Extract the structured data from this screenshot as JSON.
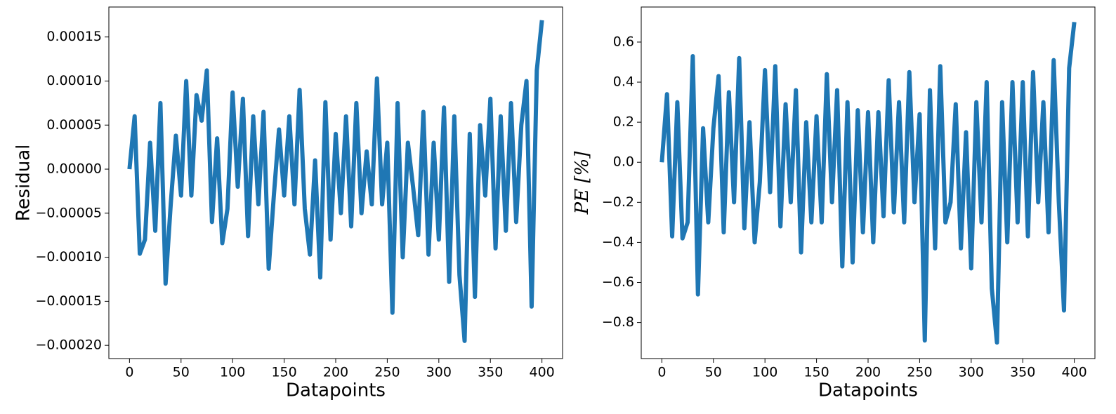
{
  "chart_data": [
    {
      "type": "line",
      "xlabel": "Datapoints",
      "ylabel": "Residual",
      "color": "#1f77b4",
      "x": [
        0,
        5,
        10,
        15,
        20,
        25,
        30,
        35,
        40,
        45,
        50,
        55,
        60,
        65,
        70,
        75,
        80,
        85,
        90,
        95,
        100,
        105,
        110,
        115,
        120,
        125,
        130,
        135,
        140,
        145,
        150,
        155,
        160,
        165,
        170,
        175,
        180,
        185,
        190,
        195,
        200,
        205,
        210,
        215,
        220,
        225,
        230,
        235,
        240,
        245,
        250,
        255,
        260,
        265,
        270,
        275,
        280,
        285,
        290,
        295,
        300,
        305,
        310,
        315,
        320,
        325,
        330,
        335,
        340,
        345,
        350,
        355,
        360,
        365,
        370,
        375,
        380,
        385,
        390,
        395,
        400
      ],
      "values": [
        0,
        6e-05,
        -9.6e-05,
        -8e-05,
        3e-05,
        -7e-05,
        7.5e-05,
        -0.00013,
        -4e-05,
        3.8e-05,
        -3e-05,
        0.0001,
        -3e-05,
        8.4e-05,
        5.5e-05,
        0.000112,
        -6e-05,
        3.5e-05,
        -8.4e-05,
        -4.5e-05,
        8.7e-05,
        -2e-05,
        8e-05,
        -7.6e-05,
        6e-05,
        -4e-05,
        6.5e-05,
        -0.000113,
        -3e-05,
        4.5e-05,
        -3e-05,
        6e-05,
        -4e-05,
        9e-05,
        -4.5e-05,
        -9.7e-05,
        1e-05,
        -0.000123,
        7.6e-05,
        -8e-05,
        4e-05,
        -5e-05,
        6e-05,
        -6.5e-05,
        7.5e-05,
        -5e-05,
        2e-05,
        -4e-05,
        0.000103,
        -4e-05,
        3e-05,
        -0.000163,
        7.5e-05,
        -0.0001,
        3e-05,
        -2e-05,
        -7.5e-05,
        6.5e-05,
        -9.7e-05,
        3e-05,
        -8e-05,
        7e-05,
        -0.000128,
        6e-05,
        -0.00012,
        -0.000195,
        4e-05,
        -0.000145,
        5e-05,
        -3e-05,
        8e-05,
        -9e-05,
        6e-05,
        -7e-05,
        7.5e-05,
        -6e-05,
        5e-05,
        0.0001,
        -0.000156,
        0.000112,
        0.000169
      ],
      "xlim": [
        -20,
        420
      ],
      "ylim": [
        -0.000215,
        0.000184
      ],
      "xticks": [
        0,
        50,
        100,
        150,
        200,
        250,
        300,
        350,
        400
      ],
      "yticks": [
        {
          "value": -0.0002,
          "label": "−0.00020"
        },
        {
          "value": -0.00015,
          "label": "−0.00015"
        },
        {
          "value": -0.0001,
          "label": "−0.00010"
        },
        {
          "value": -5e-05,
          "label": "−0.00005"
        },
        {
          "value": 0,
          "label": "0.00000"
        },
        {
          "value": 5e-05,
          "label": "0.00005"
        },
        {
          "value": 0.0001,
          "label": "0.00010"
        },
        {
          "value": 0.00015,
          "label": "0.00015"
        }
      ]
    },
    {
      "type": "line",
      "xlabel": "Datapoints",
      "ylabel": "PE [%]",
      "color": "#1f77b4",
      "x": [
        0,
        5,
        10,
        15,
        20,
        25,
        30,
        35,
        40,
        45,
        50,
        55,
        60,
        65,
        70,
        75,
        80,
        85,
        90,
        95,
        100,
        105,
        110,
        115,
        120,
        125,
        130,
        135,
        140,
        145,
        150,
        155,
        160,
        165,
        170,
        175,
        180,
        185,
        190,
        195,
        200,
        205,
        210,
        215,
        220,
        225,
        230,
        235,
        240,
        245,
        250,
        255,
        260,
        265,
        270,
        275,
        280,
        285,
        290,
        295,
        300,
        305,
        310,
        315,
        320,
        325,
        330,
        335,
        340,
        345,
        350,
        355,
        360,
        365,
        370,
        375,
        380,
        385,
        390,
        395,
        400
      ],
      "values": [
        0,
        0.34,
        -0.37,
        0.3,
        -0.38,
        -0.3,
        0.53,
        -0.66,
        0.17,
        -0.3,
        0.17,
        0.43,
        -0.35,
        0.35,
        -0.2,
        0.52,
        -0.33,
        0.2,
        -0.4,
        -0.1,
        0.46,
        -0.15,
        0.48,
        -0.32,
        0.29,
        -0.2,
        0.36,
        -0.45,
        0.2,
        -0.3,
        0.23,
        -0.3,
        0.44,
        -0.2,
        0.36,
        -0.52,
        0.3,
        -0.5,
        0.26,
        -0.35,
        0.25,
        -0.4,
        0.25,
        -0.27,
        0.41,
        -0.25,
        0.3,
        -0.3,
        0.45,
        -0.2,
        0.24,
        -0.89,
        0.36,
        -0.43,
        0.48,
        -0.3,
        -0.2,
        0.29,
        -0.43,
        0.15,
        -0.53,
        0.3,
        -0.3,
        0.4,
        -0.63,
        -0.9,
        0.3,
        -0.4,
        0.4,
        -0.3,
        0.4,
        -0.37,
        0.45,
        -0.2,
        0.3,
        -0.35,
        0.51,
        -0.2,
        -0.74,
        0.47,
        0.7
      ],
      "xlim": [
        -20,
        420
      ],
      "ylim": [
        -0.98,
        0.775
      ],
      "xticks": [
        0,
        50,
        100,
        150,
        200,
        250,
        300,
        350,
        400
      ],
      "yticks": [
        {
          "value": -0.8,
          "label": "−0.8"
        },
        {
          "value": -0.6,
          "label": "−0.6"
        },
        {
          "value": -0.4,
          "label": "−0.4"
        },
        {
          "value": -0.2,
          "label": "−0.2"
        },
        {
          "value": 0,
          "label": "0.0"
        },
        0.2,
        0.4,
        0.6
      ]
    }
  ]
}
